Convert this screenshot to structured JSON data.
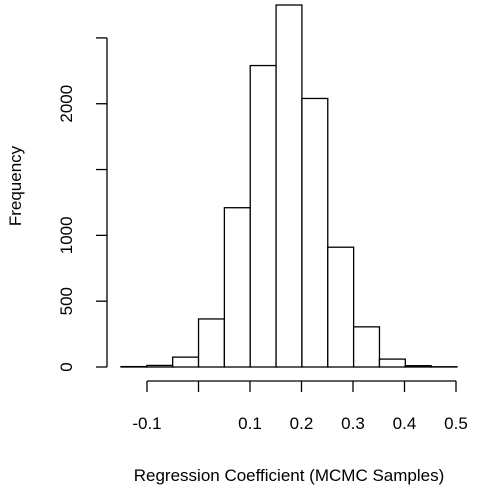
{
  "chart_data": {
    "type": "histogram",
    "title": "",
    "xlabel": "Regression Coefficient (MCMC Samples)",
    "ylabel": "Frequency",
    "bin_width": 0.05,
    "bins": [
      {
        "x0": -0.15,
        "x1": -0.1,
        "count": 3
      },
      {
        "x0": -0.1,
        "x1": -0.05,
        "count": 12
      },
      {
        "x0": -0.05,
        "x1": 0.0,
        "count": 75
      },
      {
        "x0": 0.0,
        "x1": 0.05,
        "count": 365
      },
      {
        "x0": 0.05,
        "x1": 0.1,
        "count": 1210
      },
      {
        "x0": 0.1,
        "x1": 0.15,
        "count": 2290
      },
      {
        "x0": 0.15,
        "x1": 0.2,
        "count": 2750
      },
      {
        "x0": 0.2,
        "x1": 0.25,
        "count": 2040
      },
      {
        "x0": 0.25,
        "x1": 0.3,
        "count": 910
      },
      {
        "x0": 0.3,
        "x1": 0.35,
        "count": 305
      },
      {
        "x0": 0.35,
        "x1": 0.4,
        "count": 60
      },
      {
        "x0": 0.4,
        "x1": 0.45,
        "count": 10
      },
      {
        "x0": 0.45,
        "x1": 0.5,
        "count": 2
      }
    ],
    "x_ticks": [
      {
        "value": -0.1,
        "label": "-0.1"
      },
      {
        "value": 0.0,
        "label": ""
      },
      {
        "value": 0.1,
        "label": "0.1"
      },
      {
        "value": 0.2,
        "label": "0.2"
      },
      {
        "value": 0.3,
        "label": "0.3"
      },
      {
        "value": 0.4,
        "label": "0.4"
      },
      {
        "value": 0.5,
        "label": "0.5"
      }
    ],
    "y_ticks": [
      {
        "value": 0,
        "label": "0"
      },
      {
        "value": 500,
        "label": "500"
      },
      {
        "value": 1000,
        "label": "1000"
      },
      {
        "value": 1500,
        "label": ""
      },
      {
        "value": 2000,
        "label": "2000"
      },
      {
        "value": 2500,
        "label": ""
      }
    ],
    "xlim": [
      -0.15,
      0.5
    ],
    "ylim": [
      0,
      2750
    ],
    "grid": false,
    "colors": {
      "bar_fill": "#ffffff",
      "bar_stroke": "#000000"
    }
  }
}
